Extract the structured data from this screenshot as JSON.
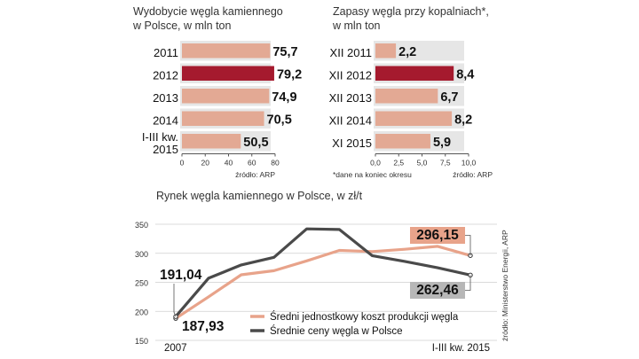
{
  "colors": {
    "bar": "#E3A994",
    "highlight": "#A51A2E",
    "slot": "#E6E6E6",
    "cost_line": "#E8A38A",
    "price_line": "#4A4A4A",
    "grid": "#CFCFCF"
  },
  "chart_data": [
    {
      "type": "bar",
      "orientation": "horizontal",
      "title_line1": "Wydobycie węgla kamiennego",
      "title_line2": "w Polsce, w mln ton",
      "categories": [
        {
          "line1": "2011",
          "line2": ""
        },
        {
          "line1": "2012",
          "line2": ""
        },
        {
          "line1": "2013",
          "line2": ""
        },
        {
          "line1": "2014",
          "line2": ""
        },
        {
          "line1": "I-III kw.",
          "line2": "2015"
        }
      ],
      "values": [
        75.7,
        79.2,
        74.9,
        70.5,
        50.5
      ],
      "value_labels": [
        "75,7",
        "79,2",
        "74,9",
        "70,5",
        "50,5"
      ],
      "highlight_index": 1,
      "xlim": [
        0,
        80
      ],
      "ticks": [
        {
          "v": 0,
          "label": "0"
        },
        {
          "v": 20,
          "label": "20"
        },
        {
          "v": 40,
          "label": "40"
        },
        {
          "v": 60,
          "label": "60"
        },
        {
          "v": 80,
          "label": "80"
        }
      ],
      "source": "źródło: ARP"
    },
    {
      "type": "bar",
      "orientation": "horizontal",
      "title_line1": "Zapasy węgla przy kopalniach*,",
      "title_line2": "w mln ton",
      "categories": [
        {
          "line1": "XII 2011",
          "line2": ""
        },
        {
          "line1": "XII 2012",
          "line2": ""
        },
        {
          "line1": "XII 2013",
          "line2": ""
        },
        {
          "line1": "XII 2014",
          "line2": ""
        },
        {
          "line1": "XI 2015",
          "line2": ""
        }
      ],
      "values": [
        2.2,
        8.4,
        6.7,
        8.2,
        5.9
      ],
      "value_labels": [
        "2,2",
        "8,4",
        "6,7",
        "8,2",
        "5,9"
      ],
      "highlight_index": 1,
      "xlim": [
        0,
        10
      ],
      "ticks": [
        {
          "v": 0,
          "label": "0,0"
        },
        {
          "v": 2.5,
          "label": "2,5"
        },
        {
          "v": 5,
          "label": "5,0"
        },
        {
          "v": 7.5,
          "label": "7,5"
        },
        {
          "v": 10,
          "label": "10,0"
        }
      ],
      "footnote": "*dane na koniec okresu",
      "source": "źródło: ARP"
    },
    {
      "type": "line",
      "title": "Rynek węgla kamiennego w Polsce, w zł/t",
      "x_start_label": "2007",
      "x_end_label": "I-III kw. 2015",
      "x": [
        0,
        1,
        2,
        3,
        4,
        5,
        6,
        7,
        8,
        9
      ],
      "ylim": [
        150,
        350
      ],
      "yticks": [
        150,
        200,
        250,
        300,
        350
      ],
      "series": [
        {
          "name": "Średni jednostkowy koszt produkcji węgla",
          "color_key": "cost_line",
          "values": [
            187.93,
            225,
            263,
            270,
            287,
            305,
            303,
            307,
            312,
            296.15
          ],
          "start_label": "187,93",
          "end_label": "296,15"
        },
        {
          "name": "Średnie ceny węgla w Polsce",
          "color_key": "price_line",
          "values": [
            191.04,
            257,
            280,
            293,
            342,
            341,
            296,
            286,
            275,
            262.46
          ],
          "start_label": "191,04",
          "end_label": "262,46"
        }
      ],
      "source": "źródło: Ministerstwo Energii, ARP"
    }
  ]
}
